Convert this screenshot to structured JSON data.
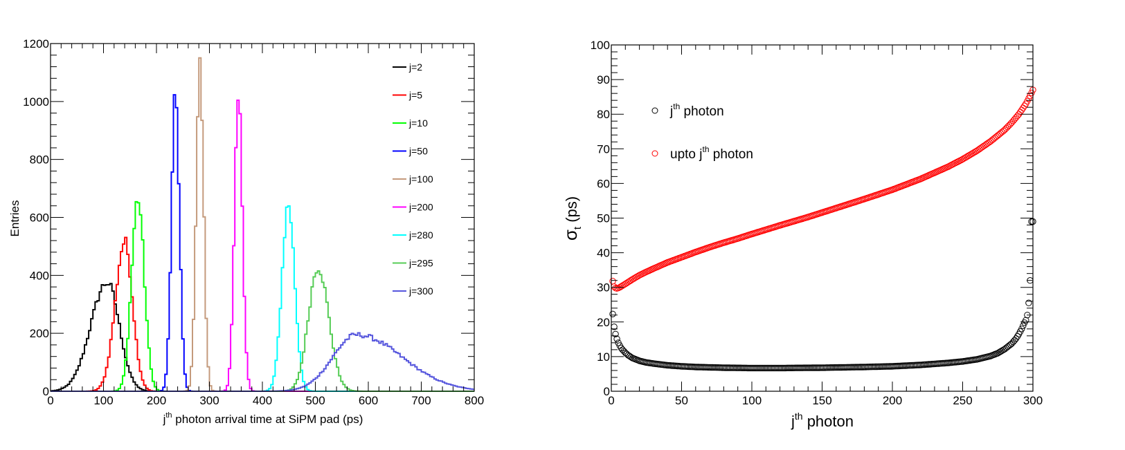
{
  "chart_data": [
    {
      "type": "line",
      "subtype": "histogram-step",
      "title": "",
      "xlabel": "j^{th} photon arrival time at SiPM pad (ps)",
      "xlabel_parts": {
        "pre": "j",
        "sup": "th",
        "post": " photon arrival time at SiPM pad (ps)"
      },
      "ylabel": "Entries",
      "xlim": [
        0,
        800
      ],
      "ylim": [
        0,
        1200
      ],
      "xticks": [
        0,
        100,
        200,
        300,
        400,
        500,
        600,
        700,
        800
      ],
      "yticks": [
        0,
        200,
        400,
        600,
        800,
        1000,
        1200
      ],
      "bin_width": 4,
      "legend_position": "top-right",
      "series": [
        {
          "name": "j=2",
          "color": "#000000",
          "mean": 107,
          "sigma": 23,
          "peak": 375,
          "skew": -0.6
        },
        {
          "name": "j=5",
          "color": "#ff0000",
          "mean": 140,
          "sigma": 15,
          "peak": 515,
          "skew": -0.3
        },
        {
          "name": "j=10",
          "color": "#00ff00",
          "mean": 165,
          "sigma": 12,
          "peak": 665,
          "skew": 0
        },
        {
          "name": "j=50",
          "color": "#0000ff",
          "mean": 236,
          "sigma": 7.5,
          "peak": 1015,
          "skew": 0
        },
        {
          "name": "j=100",
          "color": "#c49a7c",
          "mean": 282,
          "sigma": 7,
          "peak": 1120,
          "skew": 0
        },
        {
          "name": "j=200",
          "color": "#ff00ff",
          "mean": 355,
          "sigma": 7.5,
          "peak": 1005,
          "skew": 0
        },
        {
          "name": "j=280",
          "color": "#00ffff",
          "mean": 449,
          "sigma": 12,
          "peak": 645,
          "skew": 0
        },
        {
          "name": "j=295",
          "color": "#55cc55",
          "mean": 505,
          "sigma": 18,
          "peak": 430,
          "skew": 0.2
        },
        {
          "name": "j=300",
          "color": "#5555dd",
          "mean": 578,
          "sigma": 45,
          "peak": 195,
          "skew": 1.5
        }
      ]
    },
    {
      "type": "scatter",
      "title": "",
      "xlabel": "j^{th} photon",
      "xlabel_parts": {
        "pre": "j",
        "sup": "th",
        "post": " photon"
      },
      "ylabel": "σ_t (ps)",
      "ylabel_parts": {
        "pre": "σ",
        "sub": "t",
        "post": " (ps)"
      },
      "xlim": [
        0,
        300
      ],
      "ylim": [
        0,
        100
      ],
      "xticks": [
        0,
        50,
        100,
        150,
        200,
        250,
        300
      ],
      "yticks": [
        0,
        10,
        20,
        30,
        40,
        50,
        60,
        70,
        80,
        90,
        100
      ],
      "legend_position": "top-left",
      "series": [
        {
          "name": "j^{th} photon",
          "label_parts": {
            "pre": "j",
            "sup": "th",
            "post": " photon"
          },
          "color": "#000000",
          "x": [
            1,
            2,
            3,
            4,
            5,
            6,
            7,
            8,
            10,
            12,
            15,
            20,
            25,
            30,
            40,
            50,
            60,
            70,
            80,
            100,
            120,
            150,
            180,
            200,
            220,
            240,
            250,
            260,
            270,
            275,
            280,
            285,
            288,
            290,
            292,
            294,
            295,
            296,
            297,
            298,
            299,
            300
          ],
          "y": [
            22.3,
            18.6,
            16.5,
            15.1,
            14.0,
            13.2,
            12.5,
            12.0,
            11.1,
            10.4,
            9.6,
            8.8,
            8.3,
            8.0,
            7.5,
            7.2,
            7.0,
            6.9,
            6.8,
            6.7,
            6.7,
            6.8,
            7.0,
            7.2,
            7.6,
            8.2,
            8.6,
            9.2,
            10.2,
            11.0,
            12.2,
            13.8,
            15.2,
            16.5,
            18.0,
            19.8,
            20.5,
            22.0,
            25.5,
            32.0,
            49.0,
            49.0
          ]
        },
        {
          "name": "upto j^{th} photon",
          "label_parts": {
            "pre": "upto j",
            "sup": "th",
            "post": " photon"
          },
          "color": "#ff0000",
          "x": [
            1,
            2,
            3,
            4,
            5,
            6,
            8,
            10,
            15,
            20,
            25,
            30,
            40,
            50,
            60,
            70,
            80,
            90,
            100,
            120,
            140,
            160,
            180,
            200,
            220,
            240,
            250,
            260,
            270,
            280,
            285,
            290,
            295,
            298,
            300
          ],
          "y": [
            31.8,
            30.2,
            29.8,
            29.7,
            29.8,
            30.0,
            30.5,
            31.0,
            32.3,
            33.5,
            34.5,
            35.4,
            37.2,
            38.7,
            40.2,
            41.6,
            42.9,
            44.1,
            45.4,
            47.9,
            50.3,
            52.9,
            55.5,
            58.2,
            61.3,
            64.9,
            67.0,
            69.4,
            72.2,
            75.5,
            77.6,
            80.0,
            83.0,
            85.3,
            87.0
          ]
        }
      ]
    }
  ]
}
